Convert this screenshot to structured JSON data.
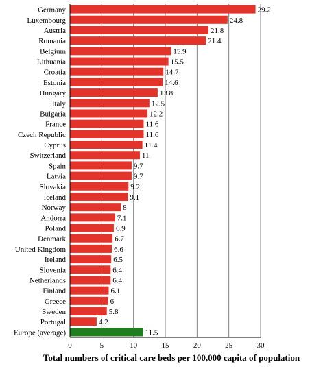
{
  "chart_data": {
    "type": "bar",
    "orientation": "horizontal",
    "categories": [
      "Germany",
      "Luxembourg",
      "Austria",
      "Romania",
      "Belgium",
      "Lithuania",
      "Croatia",
      "Estonia",
      "Hungary",
      "Italy",
      "Bulgaria",
      "France",
      "Czech Republic",
      "Cyprus",
      "Switzerland",
      "Spain",
      "Latvia",
      "Slovakia",
      "Iceland",
      "Norway",
      "Andorra",
      "Poland",
      "Denmark",
      "United Kingdom",
      "Ireland",
      "Slovenia",
      "Netherlands",
      "Finland",
      "Greece",
      "Sweden",
      "Portugal",
      "Europe (average)"
    ],
    "values": [
      29.2,
      24.8,
      21.8,
      21.4,
      15.9,
      15.5,
      14.7,
      14.6,
      13.8,
      12.5,
      12.2,
      11.6,
      11.6,
      11.4,
      11,
      9.7,
      9.7,
      9.2,
      9.1,
      8,
      7.1,
      6.9,
      6.7,
      6.6,
      6.5,
      6.4,
      6.4,
      6.1,
      6,
      5.8,
      4.2,
      11.5
    ],
    "value_labels": [
      "29.2",
      "24.8",
      "21.8",
      "21.4",
      "15.9",
      "15.5",
      "14.7",
      "14.6",
      "13.8",
      "12.5",
      "12.2",
      "11.6",
      "11.6",
      "11.4",
      "11",
      "9.7",
      "9.7",
      "9.2",
      "9.1",
      "8",
      "7.1",
      "6.9",
      "6.7",
      "6.6",
      "6.5",
      "6.4",
      "6.4",
      "6.1",
      "6",
      "5.8",
      "4.2",
      "11.5"
    ],
    "highlight_index": 31,
    "xlabel": "Total numbers of critical care beds per 100,000 capita of population",
    "xlim": [
      0,
      30
    ],
    "xticks": [
      0,
      5,
      10,
      15,
      20,
      25,
      30
    ],
    "grid": true,
    "colors": {
      "bar": "#e3342b",
      "highlight": "#1f7f1f",
      "grid": "#808080"
    }
  }
}
